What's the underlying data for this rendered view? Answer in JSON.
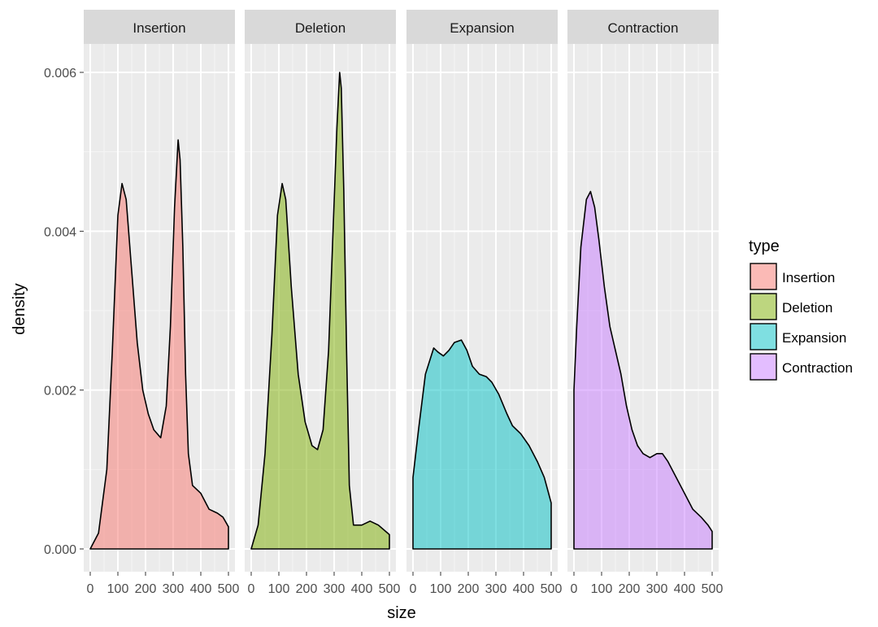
{
  "chart_data": {
    "type": "area",
    "subtype": "faceted density",
    "xlabel": "size",
    "ylabel": "density",
    "xlim": [
      0,
      500
    ],
    "ylim": [
      0,
      0.006
    ],
    "x_ticks": [
      0,
      100,
      200,
      300,
      400,
      500
    ],
    "x_tick_labels": [
      "0",
      "100",
      "200",
      "300",
      "400",
      "500"
    ],
    "y_ticks": [
      0,
      0.002,
      0.004,
      0.006
    ],
    "y_tick_labels": [
      "0.000",
      "0.002",
      "0.004",
      "0.006"
    ],
    "legend": {
      "title": "type",
      "position": "right"
    },
    "series": [
      {
        "name": "Insertion",
        "color": "#F8766D",
        "points": [
          [
            0,
            0
          ],
          [
            30,
            0.0002
          ],
          [
            60,
            0.001
          ],
          [
            80,
            0.0025
          ],
          [
            100,
            0.0042
          ],
          [
            115,
            0.0046
          ],
          [
            130,
            0.0044
          ],
          [
            150,
            0.0035
          ],
          [
            170,
            0.0026
          ],
          [
            190,
            0.002
          ],
          [
            210,
            0.0017
          ],
          [
            230,
            0.0015
          ],
          [
            255,
            0.0014
          ],
          [
            275,
            0.0018
          ],
          [
            290,
            0.0028
          ],
          [
            305,
            0.0043
          ],
          [
            318,
            0.00515
          ],
          [
            325,
            0.0049
          ],
          [
            335,
            0.0038
          ],
          [
            345,
            0.0022
          ],
          [
            355,
            0.0012
          ],
          [
            370,
            0.0008
          ],
          [
            400,
            0.0007
          ],
          [
            430,
            0.0005
          ],
          [
            460,
            0.00045
          ],
          [
            480,
            0.0004
          ],
          [
            500,
            0.00028
          ]
        ]
      },
      {
        "name": "Deletion",
        "color": "#7CAE00",
        "points": [
          [
            0,
            0
          ],
          [
            25,
            0.0003
          ],
          [
            50,
            0.0012
          ],
          [
            75,
            0.0027
          ],
          [
            95,
            0.0042
          ],
          [
            112,
            0.0046
          ],
          [
            125,
            0.0044
          ],
          [
            145,
            0.0033
          ],
          [
            170,
            0.0022
          ],
          [
            195,
            0.0016
          ],
          [
            220,
            0.0013
          ],
          [
            240,
            0.00125
          ],
          [
            260,
            0.0015
          ],
          [
            280,
            0.0025
          ],
          [
            295,
            0.0039
          ],
          [
            310,
            0.0053
          ],
          [
            320,
            0.006
          ],
          [
            326,
            0.0058
          ],
          [
            335,
            0.0045
          ],
          [
            345,
            0.0025
          ],
          [
            355,
            0.0008
          ],
          [
            370,
            0.0003
          ],
          [
            400,
            0.0003
          ],
          [
            430,
            0.00035
          ],
          [
            460,
            0.0003
          ],
          [
            500,
            0.00018
          ]
        ]
      },
      {
        "name": "Expansion",
        "color": "#00BFC4",
        "points": [
          [
            0,
            0.0009
          ],
          [
            20,
            0.0015
          ],
          [
            45,
            0.0022
          ],
          [
            75,
            0.00253
          ],
          [
            90,
            0.00248
          ],
          [
            110,
            0.00243
          ],
          [
            130,
            0.0025
          ],
          [
            150,
            0.0026
          ],
          [
            175,
            0.00263
          ],
          [
            195,
            0.0025
          ],
          [
            215,
            0.0023
          ],
          [
            240,
            0.0022
          ],
          [
            265,
            0.00217
          ],
          [
            285,
            0.0021
          ],
          [
            310,
            0.00195
          ],
          [
            340,
            0.0017
          ],
          [
            360,
            0.00155
          ],
          [
            390,
            0.00145
          ],
          [
            420,
            0.0013
          ],
          [
            450,
            0.0011
          ],
          [
            475,
            0.0009
          ],
          [
            500,
            0.00058
          ]
        ]
      },
      {
        "name": "Contraction",
        "color": "#C77CFF",
        "points": [
          [
            0,
            0.002
          ],
          [
            10,
            0.0028
          ],
          [
            25,
            0.0038
          ],
          [
            45,
            0.0044
          ],
          [
            60,
            0.0045
          ],
          [
            75,
            0.0043
          ],
          [
            90,
            0.0039
          ],
          [
            110,
            0.0033
          ],
          [
            130,
            0.0028
          ],
          [
            150,
            0.0025
          ],
          [
            170,
            0.0022
          ],
          [
            190,
            0.0018
          ],
          [
            210,
            0.0015
          ],
          [
            230,
            0.0013
          ],
          [
            250,
            0.0012
          ],
          [
            275,
            0.00115
          ],
          [
            300,
            0.0012
          ],
          [
            320,
            0.0012
          ],
          [
            340,
            0.0011
          ],
          [
            370,
            0.0009
          ],
          [
            400,
            0.0007
          ],
          [
            430,
            0.0005
          ],
          [
            460,
            0.0004
          ],
          [
            485,
            0.0003
          ],
          [
            500,
            0.00022
          ]
        ]
      }
    ]
  }
}
